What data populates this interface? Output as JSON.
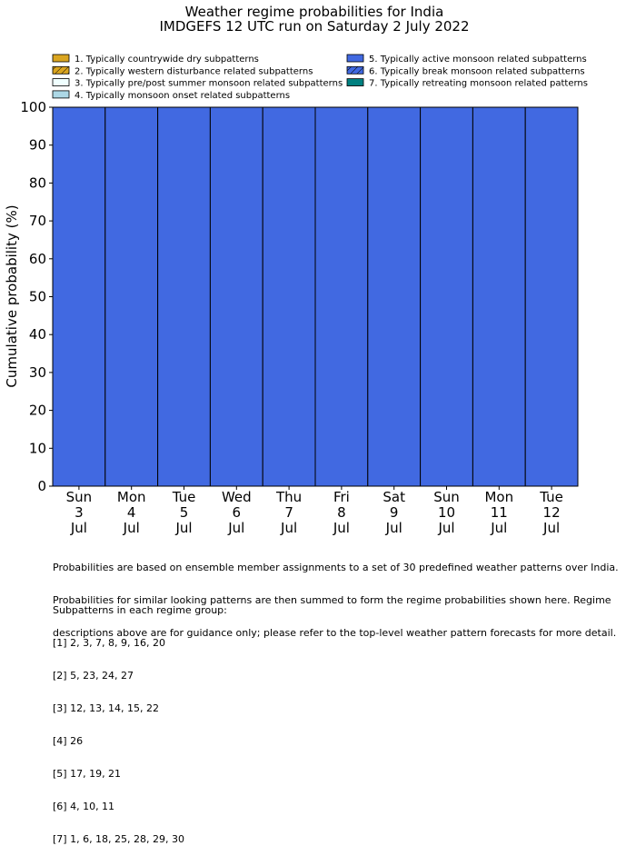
{
  "chart_data": {
    "type": "bar",
    "stacked": true,
    "title": "Weather regime probabilities for India",
    "subtitle": "IMDGEFS 12 UTC run on Saturday 2 July 2022",
    "xlabel": "",
    "ylabel": "Cumulative probability (%)",
    "ylim": [
      0,
      100
    ],
    "yticks": [
      "0",
      "10",
      "20",
      "30",
      "40",
      "50",
      "60",
      "70",
      "80",
      "90",
      "100"
    ],
    "grid": false,
    "legend_position": "top",
    "categories": [
      {
        "day": "Sun",
        "date": "3",
        "month": "Jul"
      },
      {
        "day": "Mon",
        "date": "4",
        "month": "Jul"
      },
      {
        "day": "Tue",
        "date": "5",
        "month": "Jul"
      },
      {
        "day": "Wed",
        "date": "6",
        "month": "Jul"
      },
      {
        "day": "Thu",
        "date": "7",
        "month": "Jul"
      },
      {
        "day": "Fri",
        "date": "8",
        "month": "Jul"
      },
      {
        "day": "Sat",
        "date": "9",
        "month": "Jul"
      },
      {
        "day": "Sun",
        "date": "10",
        "month": "Jul"
      },
      {
        "day": "Mon",
        "date": "11",
        "month": "Jul"
      },
      {
        "day": "Tue",
        "date": "12",
        "month": "Jul"
      }
    ],
    "series": [
      {
        "name": "1. Typically countrywide dry subpatterns",
        "color": "#DAA520",
        "hatch": false,
        "values": [
          0,
          0,
          0,
          0,
          0,
          0,
          0,
          0,
          0,
          0
        ]
      },
      {
        "name": "2. Typically western disturbance related subpatterns",
        "color": "#DAA520",
        "hatch": true,
        "values": [
          0,
          0,
          0,
          0,
          0,
          0,
          0,
          0,
          0,
          0
        ]
      },
      {
        "name": "3. Typically pre/post summer monsoon related subpatterns",
        "color": "#F0FFFF",
        "hatch": false,
        "values": [
          0,
          0,
          0,
          0,
          0,
          0,
          0,
          0,
          0,
          0
        ]
      },
      {
        "name": "4. Typically monsoon onset related subpatterns",
        "color": "#ADD8E6",
        "hatch": false,
        "values": [
          0,
          0,
          0,
          0,
          0,
          0,
          0,
          0,
          0,
          0
        ]
      },
      {
        "name": "5. Typically active monsoon related subpatterns",
        "color": "#4169E1",
        "hatch": false,
        "values": [
          100,
          100,
          100,
          100,
          100,
          100,
          100,
          100,
          100,
          100
        ]
      },
      {
        "name": "6. Typically break monsoon related subpatterns",
        "color": "#4169E1",
        "hatch": true,
        "values": [
          0,
          0,
          0,
          0,
          0,
          0,
          0,
          0,
          0,
          0
        ]
      },
      {
        "name": "7. Typically retreating monsoon related patterns",
        "color": "#008080",
        "hatch": false,
        "values": [
          0,
          0,
          0,
          0,
          0,
          0,
          0,
          0,
          0,
          0
        ]
      }
    ]
  },
  "footnote": {
    "description": [
      "Probabilities are based on ensemble member assignments to a set of 30 predefined weather patterns over India.",
      "Probabilities for similar looking patterns are then summed to form the regime probabilities shown here. Regime",
      "descriptions above are for guidance only; please refer to the top-level weather pattern forecasts for more detail."
    ],
    "groups_heading": "Subpatterns in each regime group:",
    "groups": [
      "[1] 2, 3, 7, 8, 9, 16, 20",
      "[2] 5, 23, 24, 27",
      "[3] 12, 13, 14, 15, 22",
      "[4] 26",
      "[5] 17, 19, 21",
      "[6] 4, 10, 11",
      "[7] 1, 6, 18, 25, 28, 29, 30"
    ]
  }
}
